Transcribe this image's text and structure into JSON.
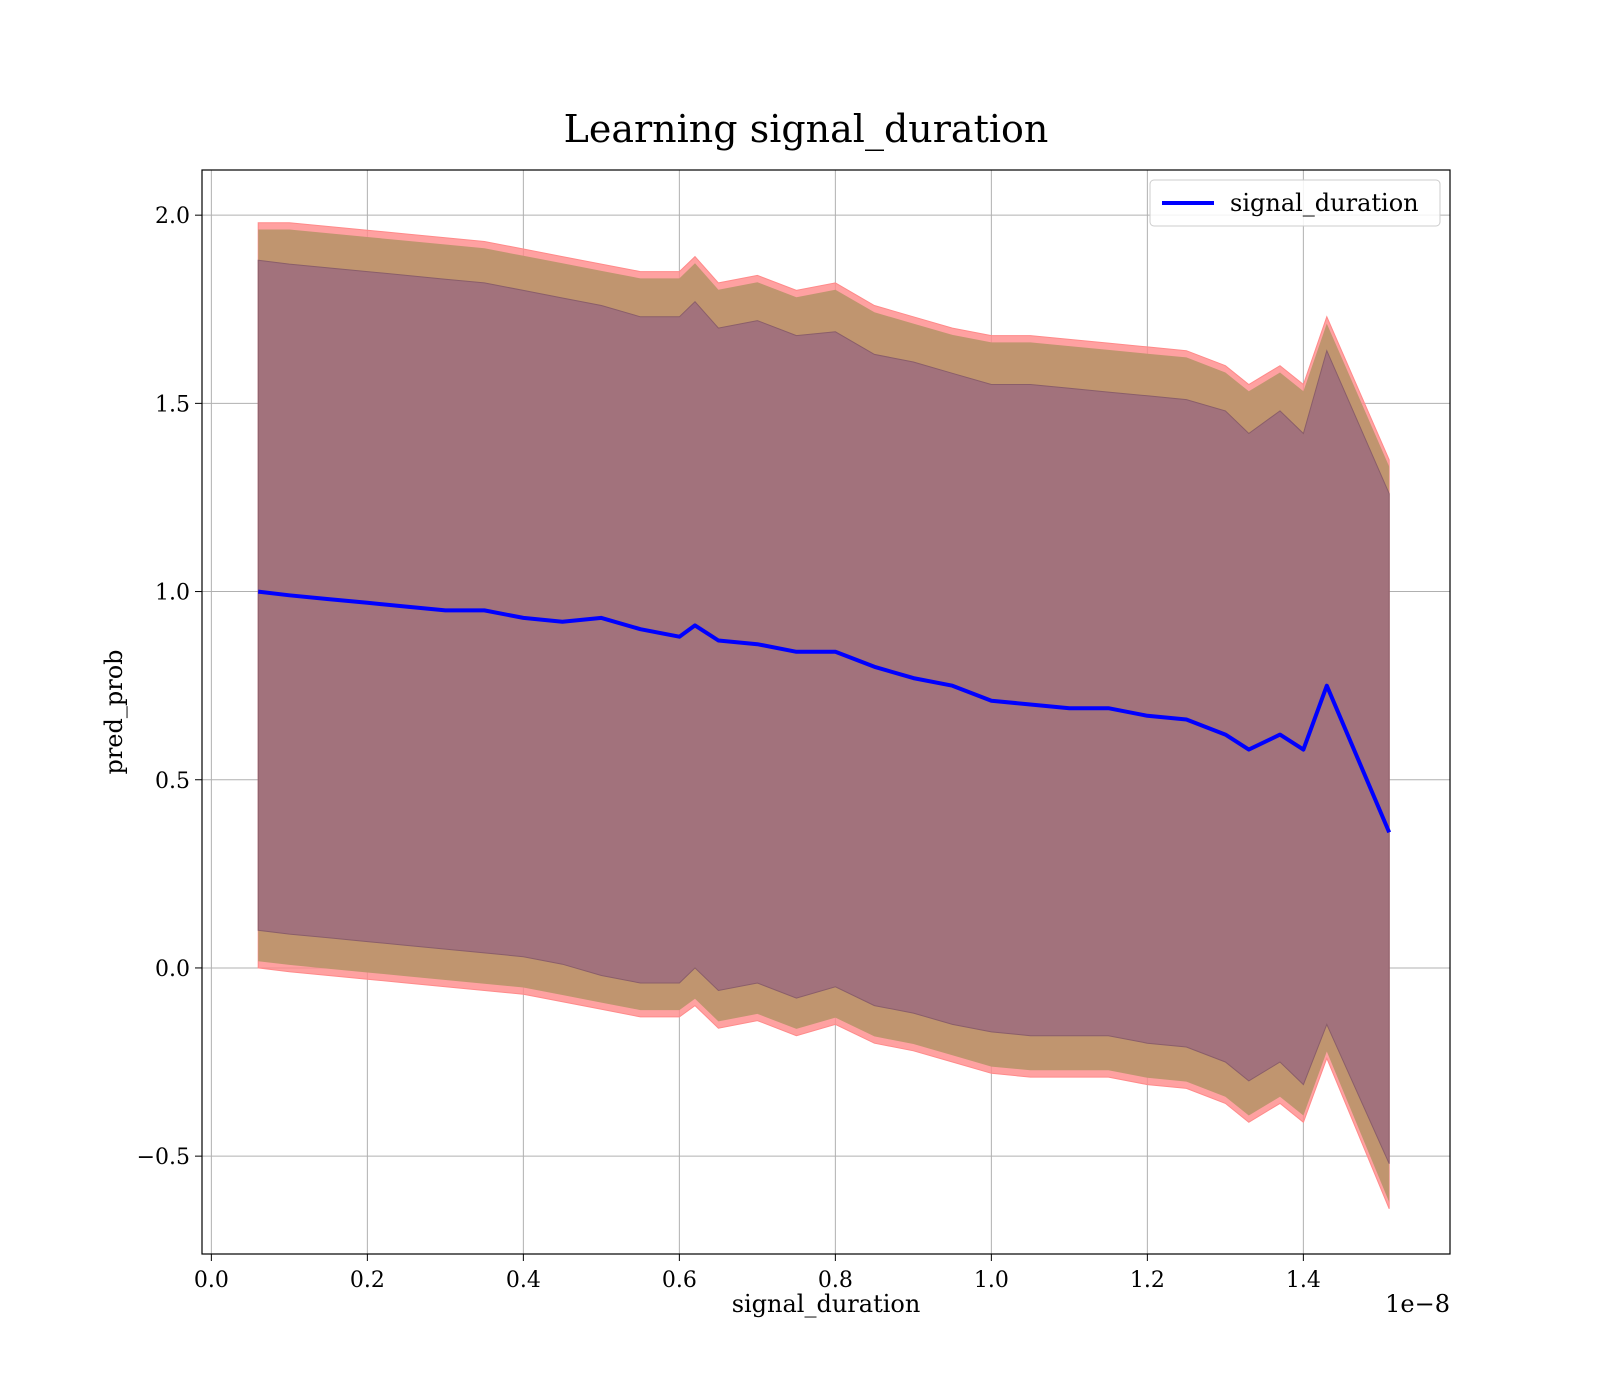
{
  "chart_data": {
    "type": "line",
    "title": "Learning signal_duration",
    "xlabel": "signal_duration",
    "ylabel": "pred_prob",
    "x_offset_label": "1e−8",
    "xlim": [
      -0.012,
      1.588
    ],
    "ylim": [
      -0.76,
      2.12
    ],
    "grid": true,
    "legend_position": "top-right",
    "x_ticks": [
      0.0,
      0.2,
      0.4,
      0.6,
      0.8,
      1.0,
      1.2,
      1.4
    ],
    "x_tick_labels": [
      "0.0",
      "0.2",
      "0.4",
      "0.6",
      "0.8",
      "1.0",
      "1.2",
      "1.4"
    ],
    "y_ticks": [
      -0.5,
      0.0,
      0.5,
      1.0,
      1.5,
      2.0
    ],
    "y_tick_labels": [
      "−0.5",
      "0.0",
      "0.5",
      "1.0",
      "1.5",
      "2.0"
    ],
    "colors": {
      "line": "#0000ff",
      "outer_band": "#ff8a8a",
      "middle_band": "#c0956f",
      "inner_band": "#a2727c"
    },
    "series": [
      {
        "name": "signal_duration",
        "x": [
          0.06,
          0.1,
          0.15,
          0.2,
          0.25,
          0.3,
          0.35,
          0.4,
          0.45,
          0.5,
          0.55,
          0.6,
          0.62,
          0.65,
          0.7,
          0.75,
          0.8,
          0.85,
          0.9,
          0.95,
          1.0,
          1.05,
          1.1,
          1.15,
          1.2,
          1.25,
          1.3,
          1.33,
          1.37,
          1.4,
          1.43,
          1.51
        ],
        "y": [
          1.0,
          0.99,
          0.98,
          0.97,
          0.96,
          0.95,
          0.95,
          0.93,
          0.92,
          0.93,
          0.9,
          0.88,
          0.91,
          0.87,
          0.86,
          0.84,
          0.84,
          0.8,
          0.77,
          0.75,
          0.71,
          0.7,
          0.69,
          0.69,
          0.67,
          0.66,
          0.62,
          0.58,
          0.62,
          0.58,
          0.75,
          0.36
        ]
      }
    ],
    "bands": {
      "x": [
        0.06,
        0.1,
        0.15,
        0.2,
        0.25,
        0.3,
        0.35,
        0.4,
        0.45,
        0.5,
        0.55,
        0.6,
        0.62,
        0.65,
        0.7,
        0.75,
        0.8,
        0.85,
        0.9,
        0.95,
        1.0,
        1.05,
        1.1,
        1.15,
        1.2,
        1.25,
        1.3,
        1.33,
        1.37,
        1.4,
        1.43,
        1.51
      ],
      "outer_upper": [
        1.98,
        1.98,
        1.97,
        1.96,
        1.95,
        1.94,
        1.93,
        1.91,
        1.89,
        1.87,
        1.85,
        1.85,
        1.89,
        1.82,
        1.84,
        1.8,
        1.82,
        1.76,
        1.73,
        1.7,
        1.68,
        1.68,
        1.67,
        1.66,
        1.65,
        1.64,
        1.6,
        1.55,
        1.6,
        1.55,
        1.73,
        1.35
      ],
      "outer_lower": [
        0.0,
        -0.01,
        -0.02,
        -0.03,
        -0.04,
        -0.05,
        -0.06,
        -0.07,
        -0.09,
        -0.11,
        -0.13,
        -0.13,
        -0.1,
        -0.16,
        -0.14,
        -0.18,
        -0.15,
        -0.2,
        -0.22,
        -0.25,
        -0.28,
        -0.29,
        -0.29,
        -0.29,
        -0.31,
        -0.32,
        -0.36,
        -0.41,
        -0.36,
        -0.41,
        -0.24,
        -0.64
      ],
      "inner_upper": [
        1.88,
        1.87,
        1.86,
        1.85,
        1.84,
        1.83,
        1.82,
        1.8,
        1.78,
        1.76,
        1.73,
        1.73,
        1.77,
        1.7,
        1.72,
        1.68,
        1.69,
        1.63,
        1.61,
        1.58,
        1.55,
        1.55,
        1.54,
        1.53,
        1.52,
        1.51,
        1.48,
        1.42,
        1.48,
        1.42,
        1.64,
        1.26
      ],
      "inner_lower": [
        0.1,
        0.09,
        0.08,
        0.07,
        0.06,
        0.05,
        0.04,
        0.03,
        0.01,
        -0.02,
        -0.04,
        -0.04,
        0.0,
        -0.06,
        -0.04,
        -0.08,
        -0.05,
        -0.1,
        -0.12,
        -0.15,
        -0.17,
        -0.18,
        -0.18,
        -0.18,
        -0.2,
        -0.21,
        -0.25,
        -0.3,
        -0.25,
        -0.31,
        -0.15,
        -0.52
      ]
    }
  }
}
